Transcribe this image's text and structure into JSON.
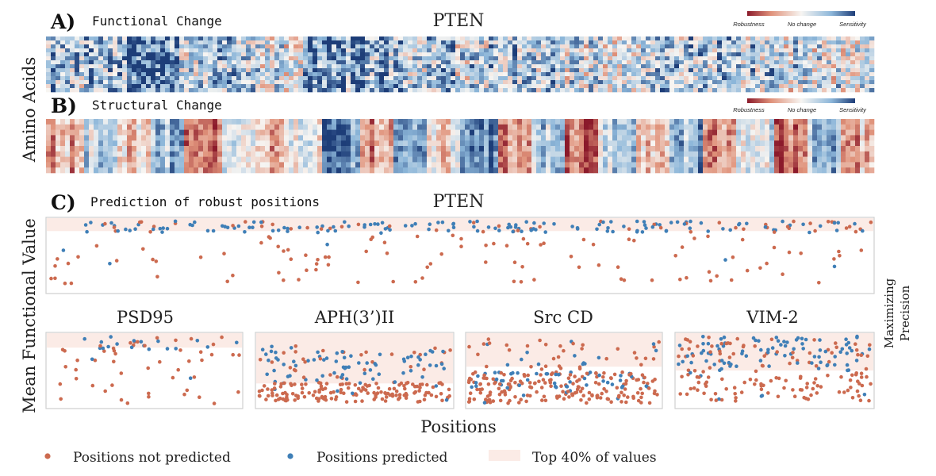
{
  "figure": {
    "panel_a": {
      "letter": "A)",
      "title": "Functional Change",
      "protein": "PTEN"
    },
    "panel_b": {
      "letter": "B)",
      "title": "Structural Change"
    },
    "panel_c": {
      "letter": "C)",
      "title": "Prediction of robust positions",
      "protein": "PTEN"
    },
    "heatmap_ylabel": "Amino Acids",
    "scatter_ylabel": "Mean Functional Value",
    "scatter_xlabel": "Positions",
    "side_label_line1": "Maximizing",
    "side_label_line2": "Precision",
    "colorbar": {
      "left": "Robustness",
      "mid": "No change",
      "right": "Sensitivity"
    },
    "legend": {
      "not_predicted": "Positions not predicted",
      "predicted": "Positions predicted",
      "top40": "Top 40% of values"
    },
    "colors": {
      "not_predicted": "#cc6a4f",
      "predicted": "#3f7fb7",
      "top40_band": "#fbebe6",
      "robust": "#8b1a2b",
      "neutral": "#f7f5f2",
      "sensitive": "#1d3d78"
    }
  },
  "chart_data": [
    {
      "type": "heatmap",
      "title": "Functional Change",
      "ylabel": "Amino Acids",
      "protein": "PTEN",
      "value_range": [
        -1,
        1
      ],
      "pattern": "mostly neutral to sensitive (blue), strongest sensitivity in the first half of positions"
    },
    {
      "type": "heatmap",
      "title": "Structural Change",
      "ylabel": "Amino Acids",
      "protein": "PTEN",
      "value_range": [
        -1,
        1
      ],
      "pattern": "alternating robust (red) and sensitive (blue) column bands across positions"
    },
    {
      "type": "scatter",
      "title": "PTEN",
      "xlabel": "Positions",
      "ylabel": "Mean Functional Value",
      "top_band": [
        0.8,
        1.0
      ],
      "ylim": [
        0,
        1
      ],
      "series": [
        {
          "name": "Positions not predicted"
        },
        {
          "name": "Positions predicted"
        }
      ]
    },
    {
      "type": "scatter",
      "title": "PSD95",
      "top_band": [
        0.8,
        1.0
      ],
      "ylim": [
        0,
        1
      ]
    },
    {
      "type": "scatter",
      "title": "APH(3’)II",
      "top_band": [
        0.33,
        1.0
      ],
      "ylim": [
        0,
        1
      ]
    },
    {
      "type": "scatter",
      "title": "Src CD",
      "top_band": [
        0.55,
        1.0
      ],
      "ylim": [
        0,
        1
      ]
    },
    {
      "type": "scatter",
      "title": "VIM-2",
      "top_band": [
        0.5,
        1.0
      ],
      "ylim": [
        0,
        1
      ]
    }
  ]
}
